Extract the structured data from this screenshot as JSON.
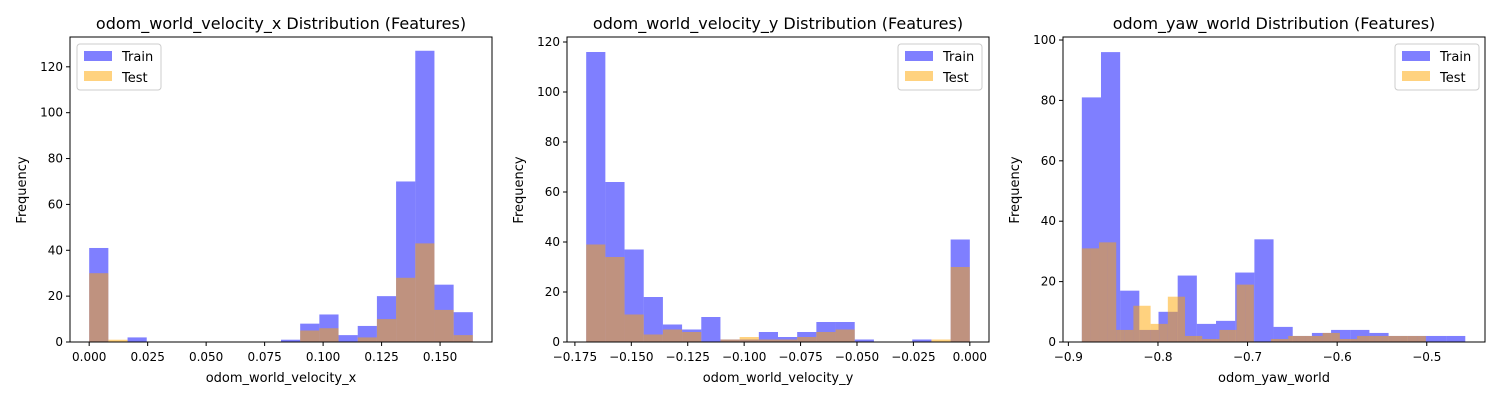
{
  "colors": {
    "train": "#0000ff",
    "test": "#ffa500",
    "axis": "#000000"
  },
  "chart_data": [
    {
      "type": "histogram",
      "title": "odom_world_velocity_x Distribution (Features)",
      "xlabel": "odom_world_velocity_x",
      "ylabel": "Frequency",
      "xlim": [
        -0.0082,
        0.1722
      ],
      "ylim": [
        0,
        133
      ],
      "xticks": [
        0.0,
        0.025,
        0.05,
        0.075,
        0.1,
        0.125,
        0.15
      ],
      "xtick_labels": [
        "0.000",
        "0.025",
        "0.050",
        "0.075",
        "0.100",
        "0.125",
        "0.150"
      ],
      "yticks": [
        0,
        20,
        40,
        60,
        80,
        100,
        120
      ],
      "ytick_labels": [
        "0",
        "20",
        "40",
        "60",
        "80",
        "100",
        "120"
      ],
      "legend_position": "upper-left",
      "series": [
        {
          "name": "Train",
          "bin_edges": [
            0.0,
            0.0082,
            0.0164,
            0.0246,
            0.0328,
            0.041,
            0.0492,
            0.0574,
            0.0656,
            0.0738,
            0.082,
            0.0902,
            0.0984,
            0.1066,
            0.1148,
            0.123,
            0.1312,
            0.1394,
            0.1476,
            0.1558,
            0.164
          ],
          "counts": [
            41,
            0,
            2,
            0,
            0,
            0,
            0,
            0,
            0,
            0,
            1,
            8,
            12,
            3,
            7,
            20,
            70,
            127,
            25,
            13
          ]
        },
        {
          "name": "Test",
          "bin_edges": [
            0.0,
            0.0082,
            0.0164,
            0.0246,
            0.0328,
            0.041,
            0.0492,
            0.0574,
            0.0656,
            0.0738,
            0.082,
            0.0902,
            0.0984,
            0.1066,
            0.1148,
            0.123,
            0.1312,
            0.1394,
            0.1476,
            0.1558,
            0.164
          ],
          "counts": [
            30,
            1,
            0,
            0,
            0,
            0,
            0,
            0,
            0,
            0,
            0,
            5,
            6,
            0,
            2,
            10,
            28,
            43,
            14,
            3
          ]
        }
      ]
    },
    {
      "type": "histogram",
      "title": "odom_world_velocity_y Distribution (Features)",
      "xlabel": "odom_world_velocity_y",
      "ylabel": "Frequency",
      "xlim": [
        -0.1785,
        0.0085
      ],
      "ylim": [
        0,
        122
      ],
      "xticks": [
        -0.175,
        -0.15,
        -0.125,
        -0.1,
        -0.075,
        -0.05,
        -0.025,
        0.0
      ],
      "xtick_labels": [
        "−0.175",
        "−0.150",
        "−0.125",
        "−0.100",
        "−0.075",
        "−0.050",
        "−0.025",
        "0.000"
      ],
      "yticks": [
        0,
        20,
        40,
        60,
        80,
        100,
        120
      ],
      "ytick_labels": [
        "0",
        "20",
        "40",
        "60",
        "80",
        "100",
        "120"
      ],
      "legend_position": "upper-right",
      "series": [
        {
          "name": "Train",
          "bin_edges": [
            -0.17,
            -0.1615,
            -0.153,
            -0.1445,
            -0.136,
            -0.1275,
            -0.119,
            -0.1105,
            -0.102,
            -0.0935,
            -0.085,
            -0.0765,
            -0.068,
            -0.0595,
            -0.051,
            -0.0425,
            -0.034,
            -0.0255,
            -0.017,
            -0.0085,
            0.0
          ],
          "counts": [
            116,
            64,
            37,
            18,
            7,
            5,
            10,
            1,
            1,
            4,
            2,
            4,
            8,
            8,
            1,
            0,
            0,
            1,
            0,
            41
          ]
        },
        {
          "name": "Test",
          "bin_edges": [
            -0.17,
            -0.1615,
            -0.153,
            -0.1445,
            -0.136,
            -0.1275,
            -0.119,
            -0.1105,
            -0.102,
            -0.0935,
            -0.085,
            -0.0765,
            -0.068,
            -0.0595,
            -0.051,
            -0.0425,
            -0.034,
            -0.0255,
            -0.017,
            -0.0085,
            0.0
          ],
          "counts": [
            39,
            34,
            11,
            3,
            5,
            4,
            0,
            1,
            2,
            1,
            1,
            2,
            4,
            5,
            0,
            0,
            0,
            0,
            1,
            30
          ]
        }
      ]
    },
    {
      "type": "histogram",
      "title": "odom_yaw_world Distribution (Features)",
      "xlabel": "odom_yaw_world",
      "ylabel": "Frequency",
      "xlim": [
        -0.906,
        -0.435
      ],
      "ylim": [
        0,
        101
      ],
      "xticks": [
        -0.9,
        -0.8,
        -0.7,
        -0.6,
        -0.5
      ],
      "xtick_labels": [
        "−0.9",
        "−0.8",
        "−0.7",
        "−0.6",
        "−0.5"
      ],
      "yticks": [
        0,
        20,
        40,
        60,
        80,
        100
      ],
      "ytick_labels": [
        "0",
        "20",
        "40",
        "60",
        "80",
        "100"
      ],
      "legend_position": "upper-right",
      "series": [
        {
          "name": "Train",
          "bin_edges": [
            -0.885,
            -0.8636,
            -0.8422,
            -0.8208,
            -0.7994,
            -0.778,
            -0.7566,
            -0.7352,
            -0.7138,
            -0.6924,
            -0.671,
            -0.6496,
            -0.6282,
            -0.6068,
            -0.5854,
            -0.564,
            -0.5426,
            -0.5212,
            -0.4998,
            -0.4784,
            -0.457
          ],
          "counts": [
            81,
            96,
            17,
            4,
            10,
            22,
            6,
            7,
            23,
            34,
            5,
            2,
            3,
            4,
            4,
            3,
            2,
            2,
            2,
            2
          ]
        },
        {
          "name": "Test",
          "bin_edges": [
            -0.885,
            -0.8754,
            -0.8658,
            -0.8562,
            -0.8466,
            -0.837,
            -0.8274,
            -0.8178,
            -0.8082,
            -0.7986,
            -0.789,
            -0.7794,
            -0.7698,
            -0.7602,
            -0.7506,
            -0.741,
            -0.7314,
            -0.7218,
            -0.7122,
            -0.7026,
            -0.693,
            -0.6834,
            -0.6738,
            -0.6642,
            -0.6546,
            -0.645,
            -0.6354,
            -0.6258,
            -0.6162,
            -0.6066,
            -0.597,
            -0.5874,
            -0.5778,
            -0.5682,
            -0.5586,
            -0.549,
            -0.5394,
            -0.5298,
            -0.5202,
            -0.5106,
            -0.501
          ],
          "counts": [
            31,
            31,
            33,
            33,
            4,
            4,
            12,
            12,
            6,
            6,
            15,
            15,
            2,
            2,
            1,
            1,
            4,
            4,
            19,
            19,
            0,
            0,
            1,
            1,
            2,
            2,
            2,
            2,
            3,
            3,
            1,
            1,
            2,
            2,
            2,
            2,
            2,
            2,
            2,
            2
          ]
        }
      ]
    }
  ]
}
